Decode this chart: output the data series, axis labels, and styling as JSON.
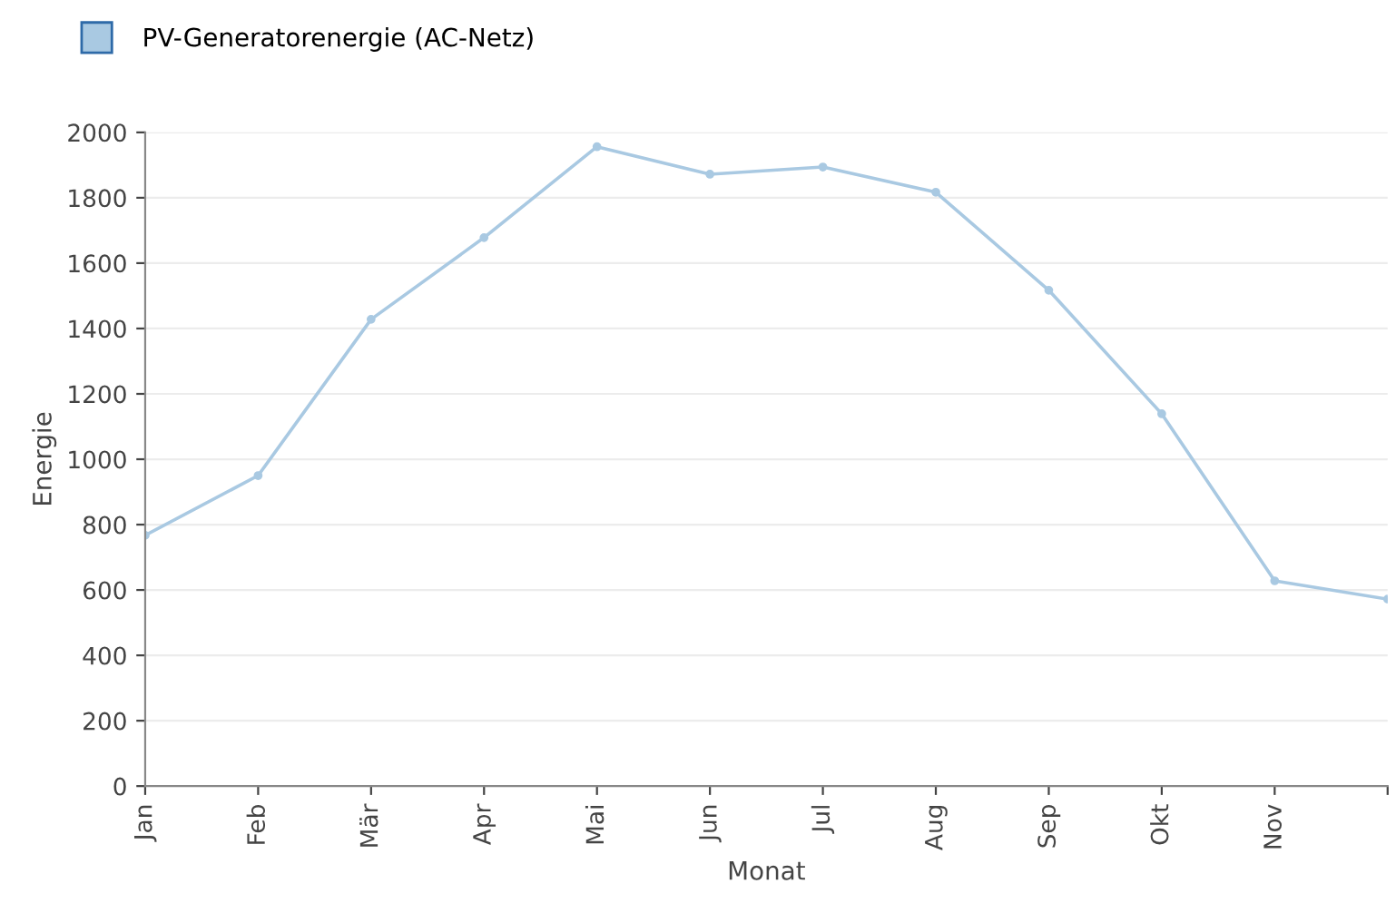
{
  "chart_data": {
    "type": "line",
    "xlabel": "Monat",
    "ylabel": "Energie",
    "categories": [
      "Jan",
      "Feb",
      "Mär",
      "Apr",
      "Mai",
      "Jun",
      "Jul",
      "Aug",
      "Sep",
      "Okt",
      "Nov",
      null
    ],
    "series": [
      {
        "name": "PV-Generatorenergie (AC-Netz)",
        "color": "#a9c9e2",
        "values": [
          767,
          950,
          1428,
          1678,
          1956,
          1872,
          1894,
          1817,
          1517,
          1139,
          628,
          572
        ]
      }
    ],
    "ylim": [
      0,
      2000
    ],
    "yticks": [
      0,
      200,
      400,
      600,
      800,
      1000,
      1200,
      1400,
      1600,
      1800,
      2000
    ],
    "grid": "y",
    "legend": "top left",
    "marker": "circle",
    "line_style": "solid"
  }
}
